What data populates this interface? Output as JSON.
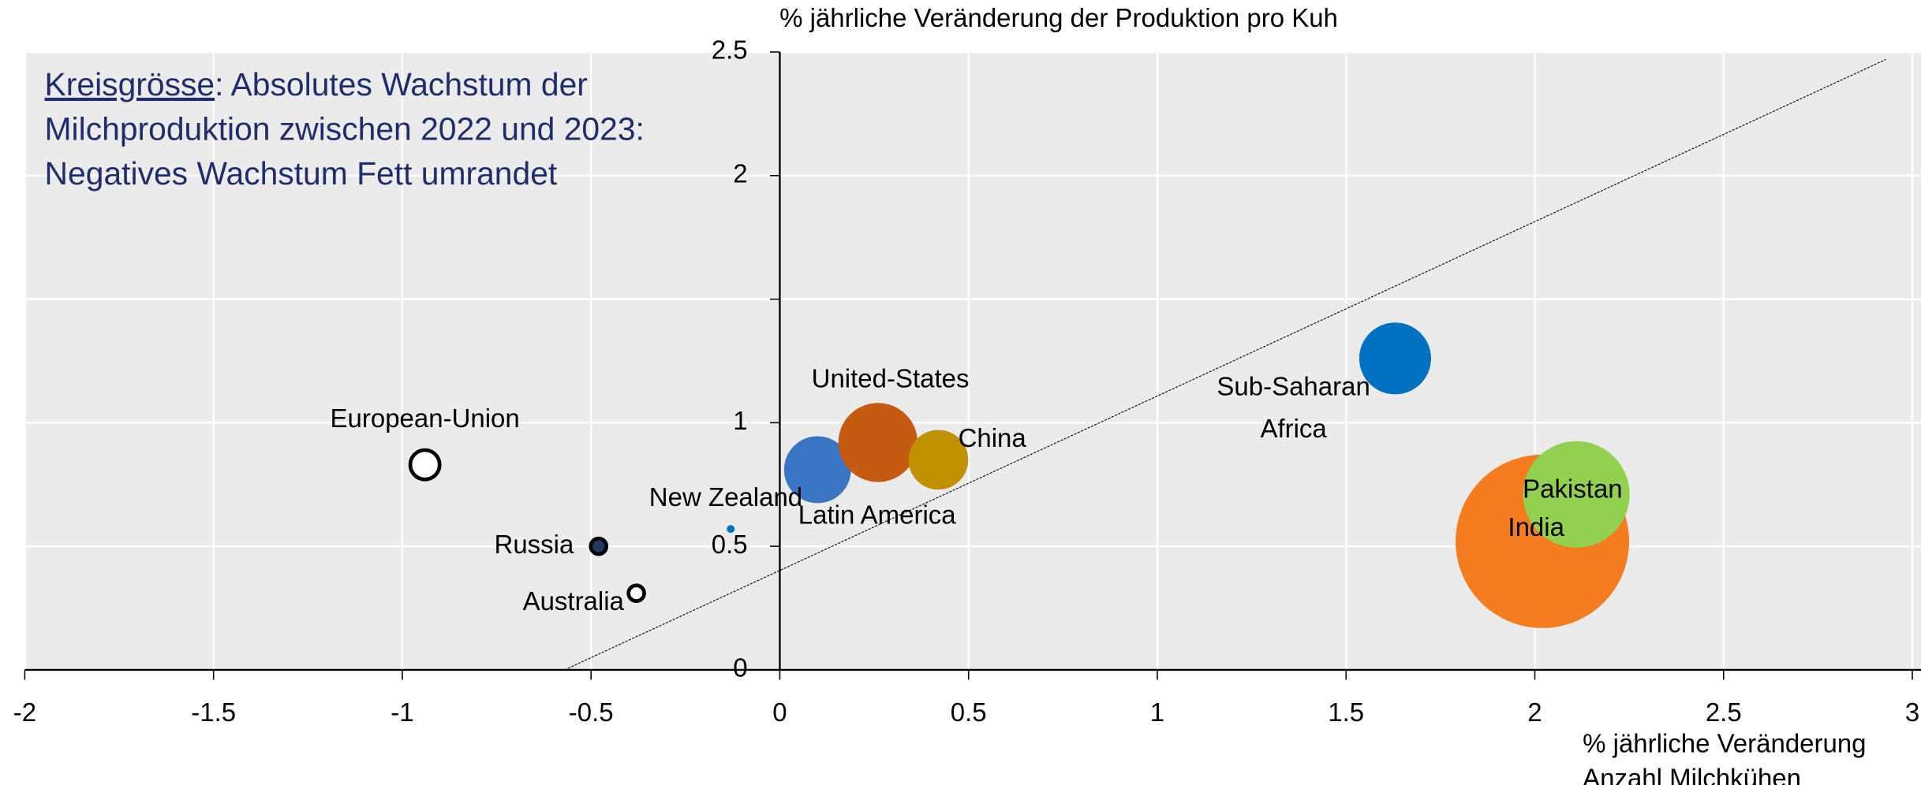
{
  "chart_data": {
    "type": "bubble",
    "ylabel": "% jährliche Veränderung der Produktion pro Kuh",
    "xlabel": [
      "% jährliche Veränderung",
      "Anzahl Milchkühen"
    ],
    "annotation": {
      "underlined": "Kreisgrösse",
      "lines": [
        ": Absolutes Wachstum der",
        "Milchproduktion zwischen 2022 und 2023:",
        "Negatives Wachstum Fett umrandet"
      ]
    },
    "xlim": [
      -2,
      3
    ],
    "ylim": [
      0,
      2.5
    ],
    "xticks": [
      -2,
      -1.5,
      -1,
      -0.5,
      0,
      0.5,
      1,
      1.5,
      2,
      2.5,
      3
    ],
    "yticks": [
      0,
      0.5,
      1,
      2,
      2.5
    ],
    "ygrid": [
      0,
      0.5,
      1,
      1.5,
      2,
      2.5
    ],
    "grid": true,
    "trend_line": {
      "x": [
        -0.57,
        2.93
      ],
      "y": [
        0,
        2.47
      ]
    },
    "series": [
      {
        "name": "European-Union",
        "color": "#ffffff",
        "negative": true,
        "x": -0.94,
        "y": 0.83,
        "size": 1.4
      },
      {
        "name": "Russia",
        "color": "#1f3864",
        "negative": true,
        "x": -0.48,
        "y": 0.5,
        "size": 0.4
      },
      {
        "name": "Australia",
        "color": "#ffffff",
        "negative": true,
        "x": -0.38,
        "y": 0.31,
        "size": 0.4
      },
      {
        "name": "New Zealand",
        "color": "#0070c0",
        "negative": false,
        "x": -0.13,
        "y": 0.57,
        "size": 0.1
      },
      {
        "name": "Latin America",
        "color": "#3a75c4",
        "negative": false,
        "x": 0.1,
        "y": 0.81,
        "size": 7.3
      },
      {
        "name": "United-States",
        "color": "#c55a11",
        "negative": false,
        "x": 0.26,
        "y": 0.92,
        "size": 10.2
      },
      {
        "name": "China",
        "color": "#bf9000",
        "negative": false,
        "x": 0.42,
        "y": 0.85,
        "size": 5.8
      },
      {
        "name": "Sub-Saharan Africa",
        "color": "#0070c0",
        "negative": false,
        "x": 1.63,
        "y": 1.26,
        "size": 8.4
      },
      {
        "name": "India",
        "color": "#f47d20",
        "negative": false,
        "x": 2.02,
        "y": 0.52,
        "size": 49
      },
      {
        "name": "Pakistan",
        "color": "#92d050",
        "negative": false,
        "x": 2.11,
        "y": 0.71,
        "size": 18.5
      }
    ]
  }
}
